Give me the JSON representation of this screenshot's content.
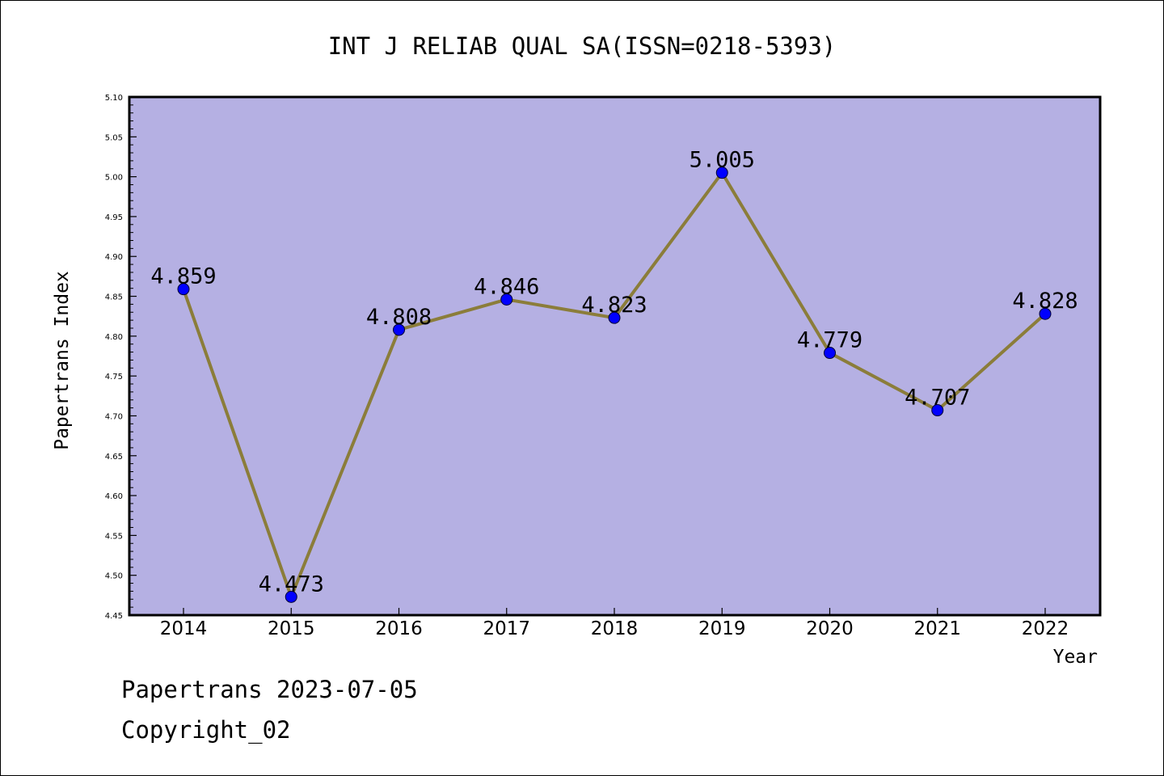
{
  "chart_data": {
    "type": "line",
    "title": "INT J RELIAB QUAL SA(ISSN=0218-5393)",
    "xlabel": "Year",
    "ylabel": "Papertrans Index",
    "categories": [
      "2014",
      "2015",
      "2016",
      "2017",
      "2018",
      "2019",
      "2020",
      "2021",
      "2022"
    ],
    "series": [
      {
        "values": [
          4.859,
          4.473,
          4.808,
          4.846,
          4.823,
          5.005,
          4.779,
          4.707,
          4.828
        ],
        "labels": [
          "4.859",
          "4.473",
          "4.808",
          "4.846",
          "4.823",
          "5.005",
          "4.779",
          "4.707",
          "4.828"
        ]
      }
    ],
    "ylim": [
      4.45,
      5.1
    ],
    "yticks": [
      "4.45",
      "4.50",
      "4.55",
      "4.60",
      "4.65",
      "4.70",
      "4.75",
      "4.80",
      "4.85",
      "4.90",
      "4.95",
      "5.00",
      "5.05",
      "5.10"
    ],
    "grid": false,
    "colors": {
      "plot_background": "#b5b0e3",
      "line": "#8b7d3a",
      "marker": "#0000ff"
    }
  },
  "footer": {
    "line1": "Papertrans 2023-07-05",
    "line2": "Copyright_02"
  }
}
